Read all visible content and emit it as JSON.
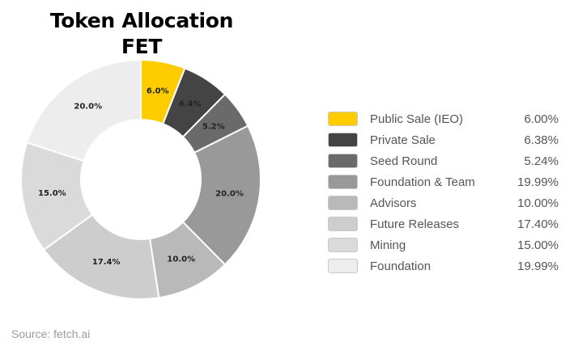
{
  "title": {
    "line1": "Token Allocation",
    "line2": "FET"
  },
  "chart_data": {
    "type": "pie",
    "subtype": "donut",
    "title": "Token Allocation FET",
    "legend_placement": "right",
    "slices": [
      {
        "name": "Public Sale (IEO)",
        "value": 6.0,
        "label": "6.0%",
        "legend_value": "6.00%",
        "color": "#FFCC00"
      },
      {
        "name": "Private Sale",
        "value": 6.4,
        "label": "6.4%",
        "legend_value": "6.38%",
        "color": "#444444"
      },
      {
        "name": "Seed Round",
        "value": 5.2,
        "label": "5.2%",
        "legend_value": "5.24%",
        "color": "#6A6A6A"
      },
      {
        "name": "Foundation & Team",
        "value": 20.0,
        "label": "20.0%",
        "legend_value": "19.99%",
        "color": "#999999"
      },
      {
        "name": "Advisors",
        "value": 10.0,
        "label": "10.0%",
        "legend_value": "10.00%",
        "color": "#B9B9B9"
      },
      {
        "name": "Future Releases",
        "value": 17.4,
        "label": "17.4%",
        "legend_value": "17.40%",
        "color": "#CDCDCD"
      },
      {
        "name": "Mining",
        "value": 15.0,
        "label": "15.0%",
        "legend_value": "15.00%",
        "color": "#DADADA"
      },
      {
        "name": "Foundation",
        "value": 20.0,
        "label": "20.0%",
        "legend_value": "19.99%",
        "color": "#EDEDED"
      }
    ]
  },
  "source": "Source: fetch.ai"
}
